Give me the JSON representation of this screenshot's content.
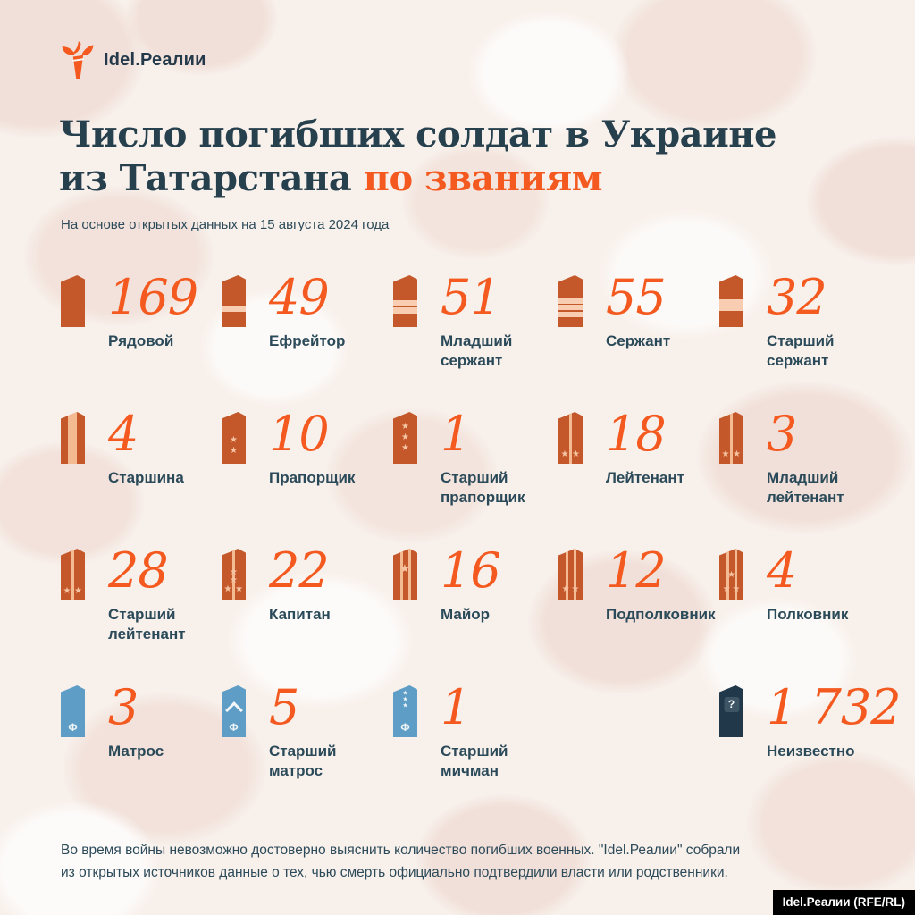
{
  "logo": {
    "brand": "Idel.Реалии"
  },
  "title": {
    "line1": "Число погибших солдат в Украине",
    "line2_dark": "из Татарстана",
    "line2_accent": "по званиям"
  },
  "subtitle": "На основе открытых данных на 15 августа 2024 года",
  "ranks": [
    {
      "value": "169",
      "label": "Рядовой",
      "insignia": {
        "base": "army"
      }
    },
    {
      "value": "49",
      "label": "Ефрейтор",
      "insignia": {
        "base": "army",
        "hstripes": [
          [
            58,
            7
          ]
        ]
      }
    },
    {
      "value": "51",
      "label": "Младший сержант",
      "insignia": {
        "base": "army",
        "hstripes": [
          [
            48,
            7
          ],
          [
            62,
            7
          ]
        ]
      }
    },
    {
      "value": "55",
      "label": "Сержант",
      "insignia": {
        "base": "army",
        "hstripes": [
          [
            44,
            6
          ],
          [
            57,
            6
          ],
          [
            70,
            6
          ]
        ]
      }
    },
    {
      "value": "32",
      "label": "Старший сержант",
      "insignia": {
        "base": "army",
        "hstripes": [
          [
            46,
            13
          ]
        ]
      }
    },
    {
      "value": "4",
      "label": "Старшина",
      "insignia": {
        "base": "army",
        "vstripes": [
          [
            31,
            10
          ]
        ]
      }
    },
    {
      "value": "10",
      "label": "Прапорщик",
      "insignia": {
        "base": "army",
        "stars": [
          [
            50,
            56
          ],
          [
            50,
            76
          ]
        ]
      }
    },
    {
      "value": "1",
      "label": "Старший прапорщик",
      "insignia": {
        "base": "army",
        "stars": [
          [
            50,
            30
          ],
          [
            50,
            50
          ],
          [
            50,
            70
          ]
        ]
      }
    },
    {
      "value": "18",
      "label": "Лейтенант",
      "insignia": {
        "base": "army",
        "vstripes": [
          [
            46,
            3
          ]
        ],
        "stars": [
          [
            26,
            82
          ],
          [
            72,
            82
          ]
        ]
      }
    },
    {
      "value": "3",
      "label": "Младший лейтенант",
      "insignia": {
        "base": "army",
        "vstripes": [
          [
            46,
            3
          ]
        ],
        "stars": [
          [
            26,
            82
          ],
          [
            72,
            82
          ]
        ]
      }
    },
    {
      "value": "28",
      "label": "Старший лейтенант",
      "insignia": {
        "base": "army",
        "vstripes": [
          [
            46,
            3
          ]
        ],
        "stars": [
          [
            26,
            82
          ],
          [
            72,
            82
          ]
        ]
      }
    },
    {
      "value": "22",
      "label": "Капитан",
      "insignia": {
        "base": "army",
        "vstripes": [
          [
            46,
            3
          ]
        ],
        "stars": [
          [
            50,
            46
          ],
          [
            50,
            62
          ],
          [
            26,
            80
          ],
          [
            72,
            80
          ]
        ]
      }
    },
    {
      "value": "16",
      "label": "Майор",
      "insignia": {
        "base": "army",
        "vstripes": [
          [
            28,
            3
          ],
          [
            64,
            3
          ]
        ],
        "stars": [
          [
            48,
            40,
            13
          ]
        ]
      }
    },
    {
      "value": "12",
      "label": "Подполковник",
      "insignia": {
        "base": "army",
        "vstripes": [
          [
            28,
            3
          ],
          [
            64,
            3
          ]
        ],
        "stars": [
          [
            30,
            80
          ],
          [
            70,
            80
          ]
        ]
      }
    },
    {
      "value": "4",
      "label": "Полковник",
      "insignia": {
        "base": "army",
        "vstripes": [
          [
            28,
            3
          ],
          [
            64,
            3
          ]
        ],
        "stars": [
          [
            30,
            80
          ],
          [
            70,
            80
          ],
          [
            50,
            52
          ]
        ]
      }
    },
    {
      "value": "3",
      "label": "Матрос",
      "insignia": {
        "base": "navy",
        "f_mark": true
      }
    },
    {
      "value": "5",
      "label": "Старший матрос",
      "insignia": {
        "base": "navy",
        "chevron": true,
        "f_mark": true
      }
    },
    {
      "value": "1",
      "label": "Старший мичман",
      "insignia": {
        "base": "navy",
        "stars": [
          [
            50,
            16,
            7
          ],
          [
            50,
            28,
            7
          ],
          [
            50,
            40,
            7
          ]
        ],
        "f_mark": true
      }
    },
    {
      "value": "1 732",
      "label": "Неизвестно",
      "insignia": {
        "base": "unknown",
        "question": true
      },
      "col": 5
    }
  ],
  "footer": {
    "note": "Во время войны невозможно достоверно выяснить количество погибших военных. \"Idel.Реалии\" собрали из открытых источников данные о тех, чью смерть официально подтвердили власти или родственники."
  },
  "credit": "Idel.Реалии (RFE/RL)",
  "colors": {
    "accent_orange": "#F4591F",
    "board_army": "#C4582B",
    "board_stripe": "#F8CDB2",
    "board_navy": "#5D9DC6",
    "board_unknown": "#20384A",
    "title_navy": "#27404E",
    "label_navy": "#2B4A59",
    "background": "#F8F0EB",
    "camo_pink": "#F2E2DB",
    "credit_bg": "#000000"
  },
  "chart_data": {
    "type": "table",
    "title": "Число погибших солдат в Украине из Татарстана по званиям",
    "subtitle": "На основе открытых данных на 15 августа 2024 года",
    "categories": [
      "Рядовой",
      "Ефрейтор",
      "Младший сержант",
      "Сержант",
      "Старший сержант",
      "Старшина",
      "Прапорщик",
      "Старший прапорщик",
      "Лейтенант",
      "Младший лейтенант",
      "Старший лейтенант",
      "Капитан",
      "Майор",
      "Подполковник",
      "Полковник",
      "Матрос",
      "Старший матрос",
      "Старший мичман",
      "Неизвестно"
    ],
    "values": [
      169,
      49,
      51,
      55,
      32,
      4,
      10,
      1,
      18,
      3,
      28,
      22,
      16,
      12,
      4,
      3,
      5,
      1,
      1732
    ],
    "note": "Во время войны невозможно достоверно выяснить количество погибших военных. \"Idel.Реалии\" собрали из открытых источников данные о тех, чью смерть официально подтвердили власти или родственники.",
    "source": "Idel.Реалии (RFE/RL)",
    "layout": "pictogram grid, 5 columns x 4 rows, rank insignia icons with counts"
  }
}
